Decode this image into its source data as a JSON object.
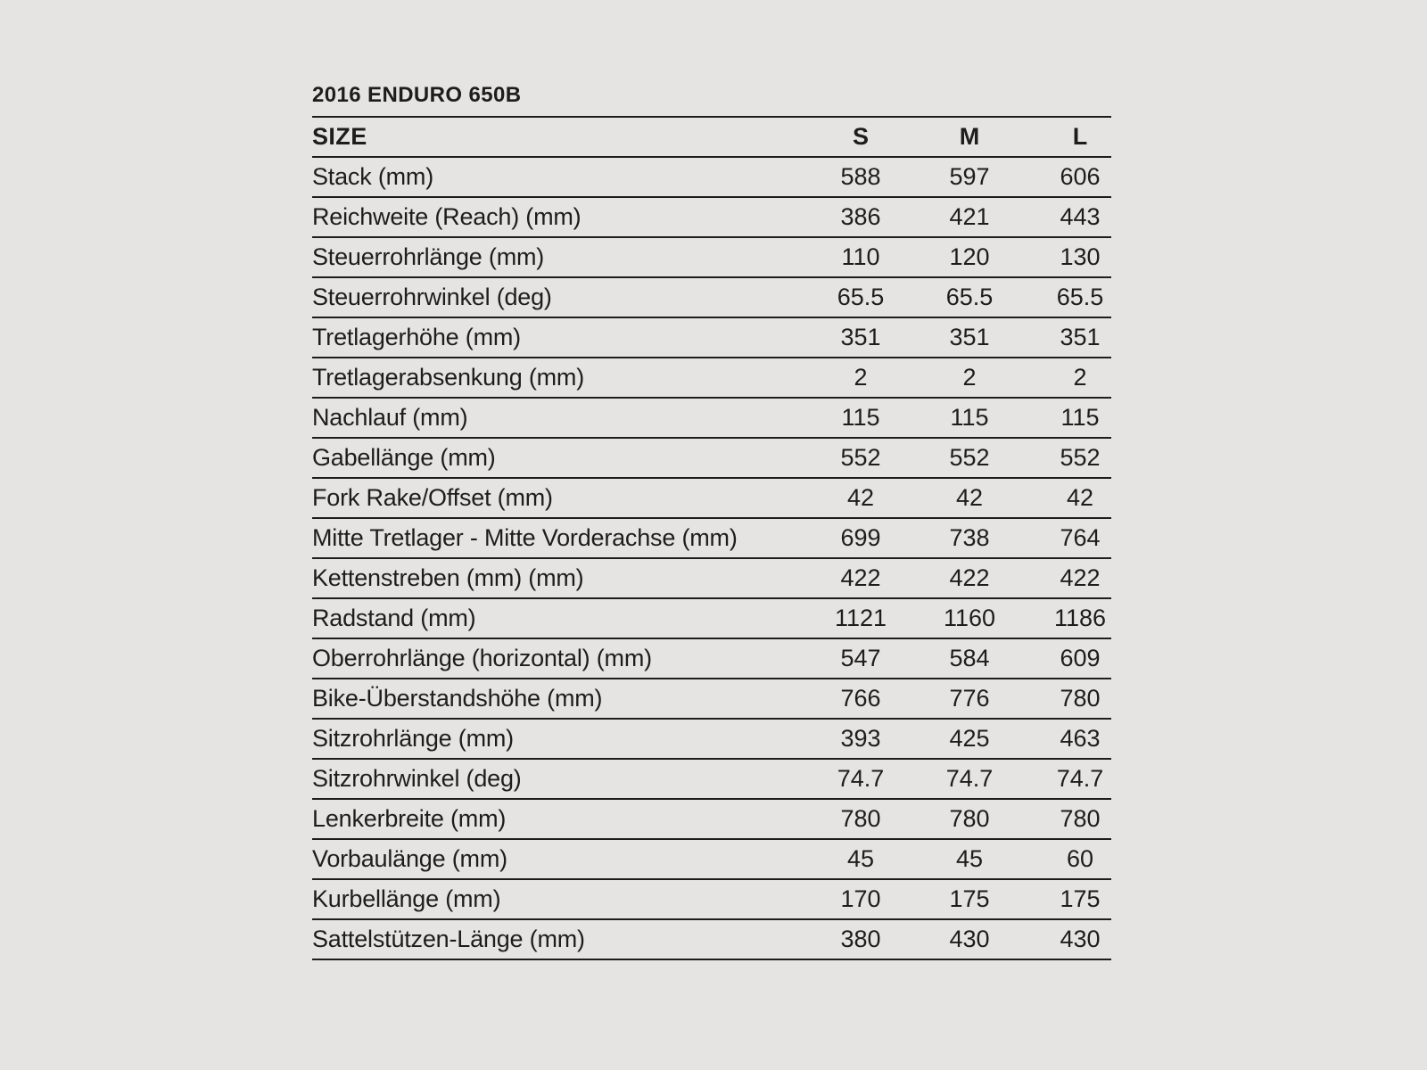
{
  "chart_data": {
    "type": "table",
    "title": "2016 ENDURO 650B",
    "columns": [
      "SIZE",
      "S",
      "M",
      "L"
    ],
    "rows": [
      {
        "label": "Stack (mm)",
        "values": [
          "588",
          "597",
          "606"
        ]
      },
      {
        "label": "Reichweite (Reach) (mm)",
        "values": [
          "386",
          "421",
          "443"
        ]
      },
      {
        "label": "Steuerrohrlänge (mm)",
        "values": [
          "110",
          "120",
          "130"
        ]
      },
      {
        "label": "Steuerrohrwinkel (deg)",
        "values": [
          "65.5",
          "65.5",
          "65.5"
        ]
      },
      {
        "label": "Tretlagerhöhe (mm)",
        "values": [
          "351",
          "351",
          "351"
        ]
      },
      {
        "label": "Tretlagerabsenkung (mm)",
        "values": [
          "2",
          "2",
          "2"
        ]
      },
      {
        "label": "Nachlauf (mm)",
        "values": [
          "115",
          "115",
          "115"
        ]
      },
      {
        "label": "Gabellänge (mm)",
        "values": [
          "552",
          "552",
          "552"
        ]
      },
      {
        "label": "Fork Rake/Offset (mm)",
        "values": [
          "42",
          "42",
          "42"
        ]
      },
      {
        "label": "Mitte Tretlager - Mitte Vorderachse (mm)",
        "values": [
          "699",
          "738",
          "764"
        ]
      },
      {
        "label": "Kettenstreben (mm) (mm)",
        "values": [
          "422",
          "422",
          "422"
        ]
      },
      {
        "label": "Radstand (mm)",
        "values": [
          "1121",
          "1160",
          "1186"
        ]
      },
      {
        "label": "Oberrohrlänge (horizontal) (mm)",
        "values": [
          "547",
          "584",
          "609"
        ]
      },
      {
        "label": "Bike-Überstandshöhe (mm)",
        "values": [
          "766",
          "776",
          "780"
        ]
      },
      {
        "label": "Sitzrohrlänge (mm)",
        "values": [
          "393",
          "425",
          "463"
        ]
      },
      {
        "label": "Sitzrohrwinkel (deg)",
        "values": [
          "74.7",
          "74.7",
          "74.7"
        ]
      },
      {
        "label": "Lenkerbreite (mm)",
        "values": [
          "780",
          "780",
          "780"
        ]
      },
      {
        "label": "Vorbaulänge (mm)",
        "values": [
          "45",
          "45",
          "60"
        ]
      },
      {
        "label": "Kurbellänge (mm)",
        "values": [
          "170",
          "175",
          "175"
        ]
      },
      {
        "label": "Sattelstützen-Länge (mm)",
        "values": [
          "380",
          "430",
          "430"
        ]
      }
    ],
    "layout": {
      "grid": "horizontal-rules-only",
      "value_alignment": "center"
    }
  },
  "colors": {
    "background": "#e5e4e2",
    "ink": "#1d1d1b",
    "rule": "#1d1d1b"
  }
}
